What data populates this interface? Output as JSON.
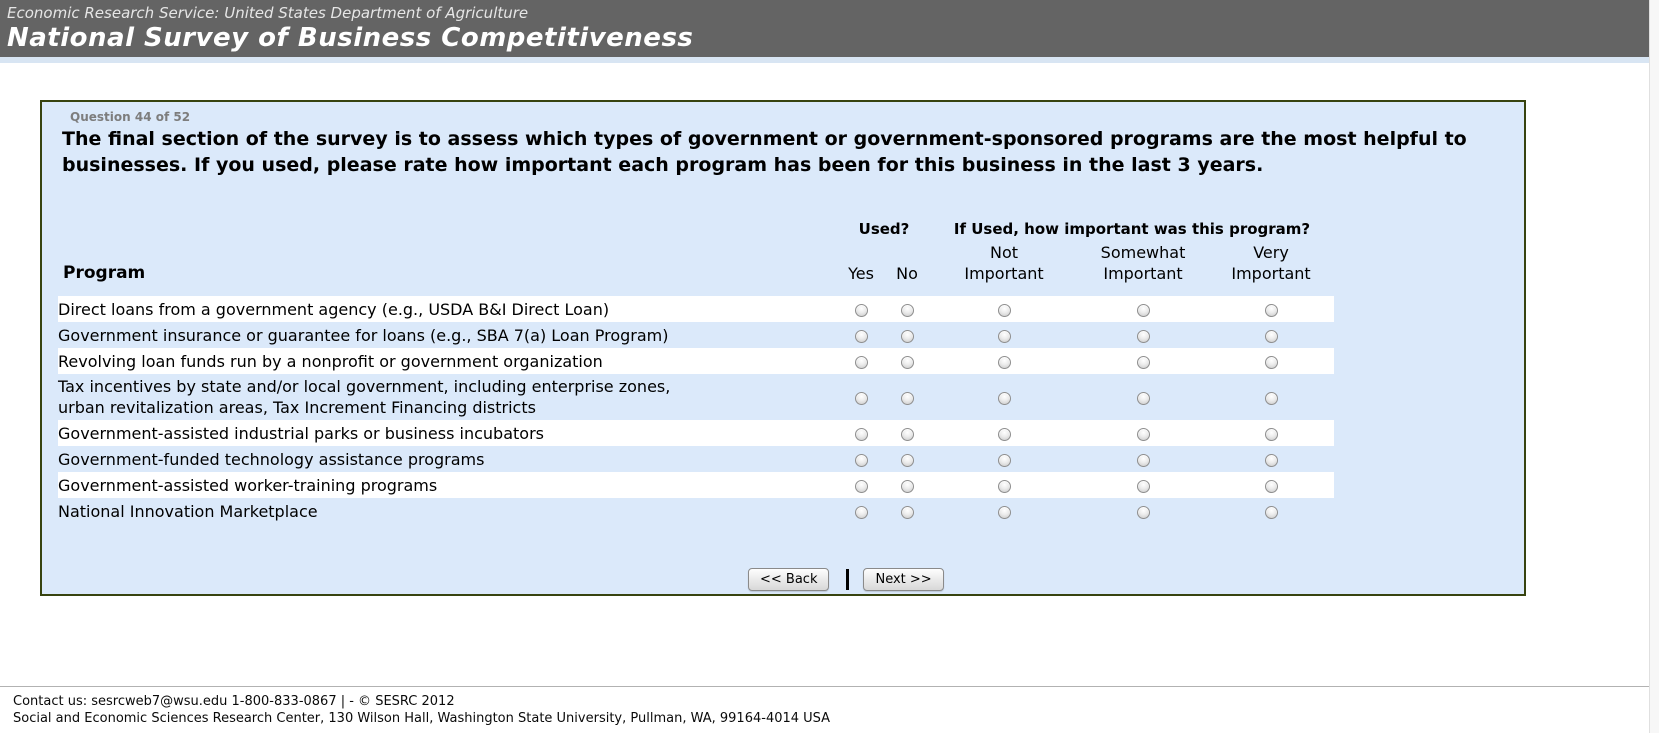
{
  "banner": {
    "agency_line": "Economic Research Service: United States Department of Agriculture",
    "survey_title": "National Survey of Business Competitiveness"
  },
  "question": {
    "progress_label": "Question 44 of 52",
    "text": "The final section of the survey is to assess which types of government or government-sponsored programs are the most helpful to businesses. If you used, please rate how important each program has been for this business in the last 3 years."
  },
  "table": {
    "program_header": "Program",
    "used_header": "Used?",
    "importance_header": "If Used, how important was this program?",
    "columns": [
      {
        "id": "yes",
        "label": "Yes"
      },
      {
        "id": "no",
        "label": "No"
      },
      {
        "id": "not-important",
        "label": "Not\nImportant"
      },
      {
        "id": "somewhat-important",
        "label": "Somewhat\nImportant"
      },
      {
        "id": "very-important",
        "label": "Very\nImportant"
      }
    ],
    "rows": [
      {
        "program": "Direct loans from a government agency (e.g., USDA B&I Direct Loan)",
        "used": null,
        "importance": null
      },
      {
        "program": "Government insurance or guarantee for loans (e.g., SBA 7(a) Loan Program)",
        "used": null,
        "importance": null
      },
      {
        "program": "Revolving loan funds run by a nonprofit or government organization",
        "used": null,
        "importance": null
      },
      {
        "program": "Tax incentives by state and/or local government, including enterprise zones,\nurban revitalization areas, Tax Increment Financing districts",
        "used": null,
        "importance": null
      },
      {
        "program": "Government-assisted industrial parks or business incubators",
        "used": null,
        "importance": null
      },
      {
        "program": "Government-funded technology assistance programs",
        "used": null,
        "importance": null
      },
      {
        "program": "Government-assisted worker-training programs",
        "used": null,
        "importance": null
      },
      {
        "program": "National Innovation Marketplace",
        "used": null,
        "importance": null
      }
    ]
  },
  "buttons": {
    "back_label": "<< Back",
    "next_label": "Next >>",
    "separator": "|"
  },
  "footer": {
    "contact_line": "Contact us: sesrcweb7@wsu.edu 1-800-833-0867 | - © SESRC 2012",
    "address_line": "Social and Economic Sciences Research Center, 130 Wilson Hall, Washington State University, Pullman, WA, 99164-4014 USA"
  },
  "colors": {
    "banner_bg": "#646464",
    "banner_strip": "#d8e5f3",
    "panel_bg": "#dbe9fa",
    "panel_border": "#37430f",
    "row_white": "#ffffff",
    "text": "#000000",
    "progress_text": "#7d7d7d"
  }
}
